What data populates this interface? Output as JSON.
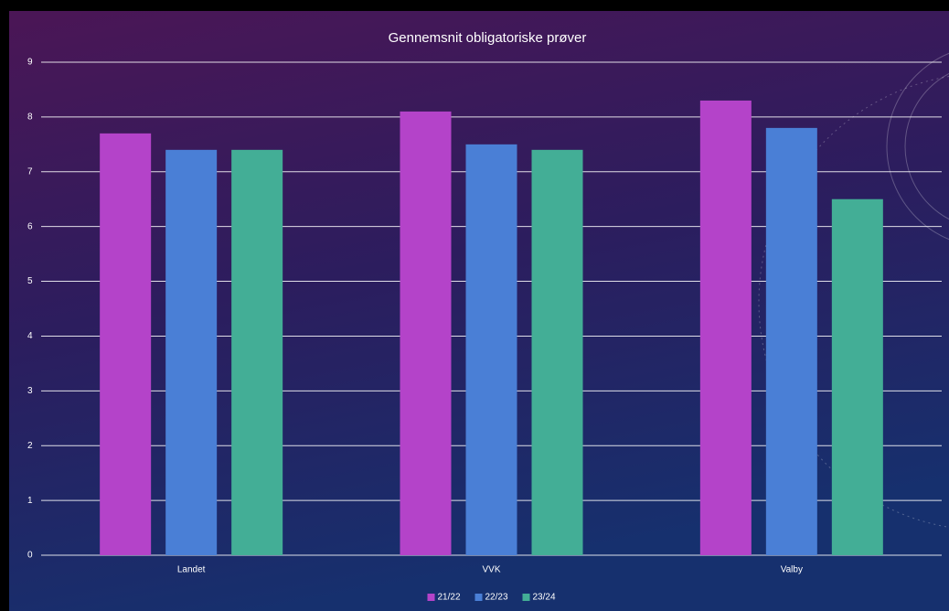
{
  "chart_data": {
    "type": "bar",
    "title": "Gennemsnit obligatoriske prøver",
    "categories": [
      "Landet",
      "VVK",
      "Valby"
    ],
    "series": [
      {
        "name": "21/22",
        "color": "#b443c9",
        "values": [
          7.7,
          8.1,
          8.3
        ]
      },
      {
        "name": "22/23",
        "color": "#4a7fd6",
        "values": [
          7.4,
          7.5,
          7.8
        ]
      },
      {
        "name": "23/24",
        "color": "#43ae96",
        "values": [
          7.4,
          7.4,
          6.5
        ]
      }
    ],
    "ylim": [
      0,
      9
    ],
    "yticks": [
      0,
      1,
      2,
      3,
      4,
      5,
      6,
      7,
      8,
      9
    ],
    "grid": true,
    "legend": "bottom"
  }
}
